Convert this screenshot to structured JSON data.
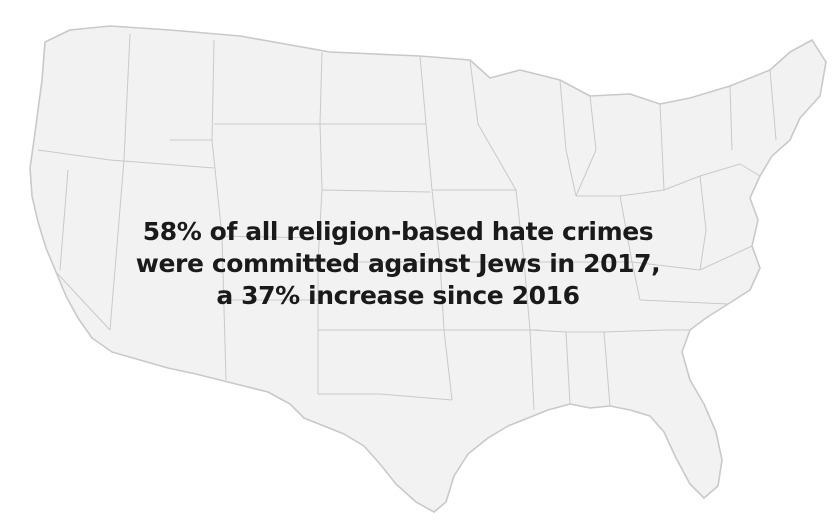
{
  "map": {
    "region": "United States",
    "style": "light grey outline map with state borders",
    "colors": {
      "land": "#f2f2f2",
      "border": "#c9c9c9",
      "text": "#1a1a1a"
    }
  },
  "callout": {
    "line1": "58% of all religion-based hate crimes",
    "line2": "were committed against Jews in 2017,",
    "line3": "a 37% increase since 2016"
  }
}
